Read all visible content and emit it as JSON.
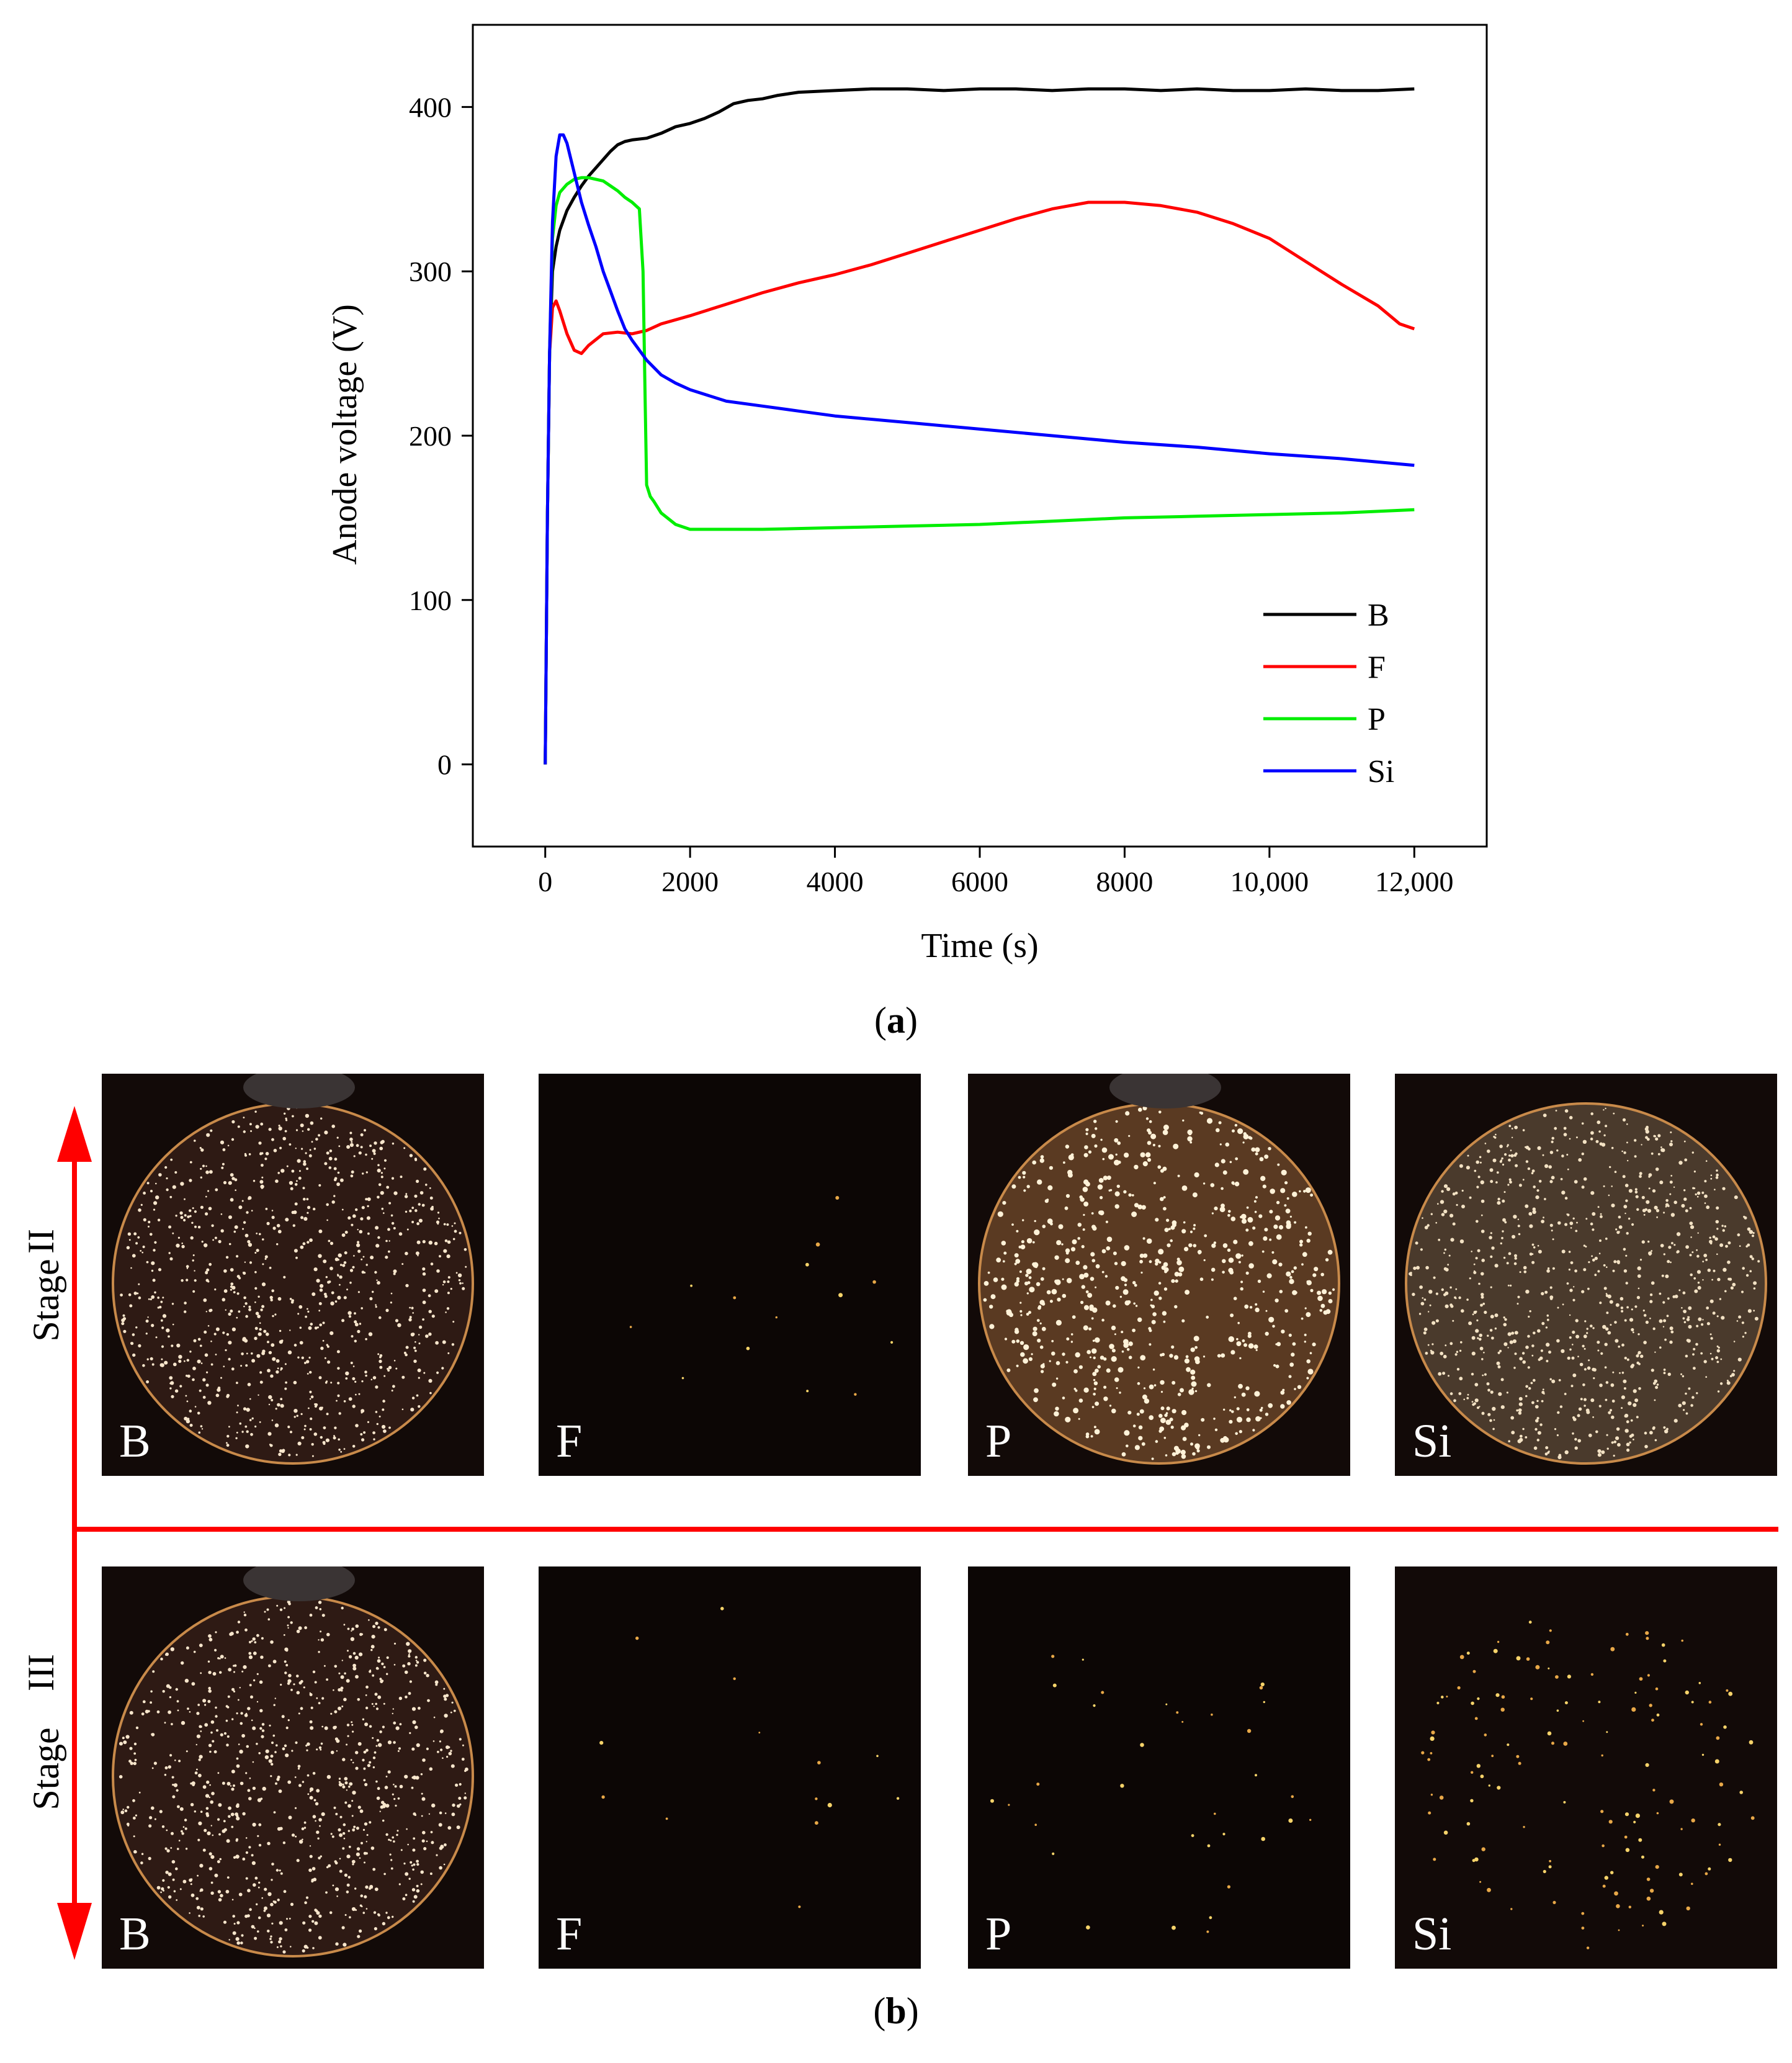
{
  "chart_data": {
    "type": "line",
    "title": "",
    "xlabel": "Time (s)",
    "ylabel": "Anode voltage (V)",
    "xlim": [
      -1000,
      13000
    ],
    "ylim": [
      -50,
      450
    ],
    "xticks": [
      0,
      2000,
      4000,
      6000,
      8000,
      10000,
      12000
    ],
    "xtick_labels": [
      "0",
      "2000",
      "4000",
      "6000",
      "8000",
      "10,000",
      "12,000"
    ],
    "yticks": [
      0,
      100,
      200,
      300,
      400
    ],
    "ytick_labels": [
      "0",
      "100",
      "200",
      "300",
      "400"
    ],
    "grid": false,
    "legend_position": "bottom-right",
    "series": [
      {
        "name": "B",
        "color": "#000000",
        "x": [
          0,
          30,
          60,
          100,
          150,
          200,
          300,
          400,
          500,
          600,
          700,
          800,
          900,
          1000,
          1100,
          1200,
          1400,
          1600,
          1800,
          2000,
          2200,
          2400,
          2600,
          2800,
          3000,
          3200,
          3500,
          4000,
          4500,
          5000,
          5500,
          6000,
          6500,
          7000,
          7500,
          8000,
          8500,
          9000,
          9500,
          10000,
          10500,
          11000,
          11500,
          12000
        ],
        "y": [
          0,
          150,
          250,
          300,
          315,
          325,
          337,
          345,
          352,
          358,
          363,
          368,
          373,
          377,
          379,
          380,
          381,
          384,
          388,
          390,
          393,
          397,
          402,
          404,
          405,
          407,
          409,
          410,
          411,
          411,
          410,
          411,
          411,
          410,
          411,
          411,
          410,
          411,
          410,
          410,
          411,
          410,
          410,
          411
        ]
      },
      {
        "name": "F",
        "color": "#ff0000",
        "x": [
          0,
          30,
          60,
          100,
          150,
          200,
          300,
          400,
          500,
          600,
          800,
          1000,
          1200,
          1400,
          1600,
          2000,
          2500,
          3000,
          3500,
          4000,
          4500,
          5000,
          5500,
          6000,
          6500,
          7000,
          7500,
          8000,
          8500,
          9000,
          9500,
          10000,
          10500,
          11000,
          11500,
          11800,
          12000
        ],
        "y": [
          0,
          150,
          250,
          278,
          282,
          276,
          262,
          252,
          250,
          255,
          262,
          263,
          262,
          264,
          268,
          273,
          280,
          287,
          293,
          298,
          304,
          311,
          318,
          325,
          332,
          338,
          342,
          342,
          340,
          336,
          329,
          320,
          306,
          292,
          279,
          268,
          265
        ]
      },
      {
        "name": "P",
        "color": "#00ee00",
        "x": [
          0,
          30,
          60,
          100,
          150,
          200,
          300,
          400,
          500,
          600,
          700,
          800,
          900,
          1000,
          1100,
          1200,
          1300,
          1350,
          1380,
          1400,
          1450,
          1500,
          1600,
          1800,
          2000,
          2500,
          3000,
          4000,
          5000,
          6000,
          7000,
          8000,
          9000,
          10000,
          11000,
          12000
        ],
        "y": [
          0,
          150,
          250,
          320,
          340,
          348,
          353,
          356,
          357,
          357,
          356,
          355,
          352,
          349,
          345,
          342,
          338,
          300,
          220,
          170,
          163,
          160,
          153,
          146,
          143,
          143,
          143,
          144,
          145,
          146,
          148,
          150,
          151,
          152,
          153,
          155
        ]
      },
      {
        "name": "Si",
        "color": "#0000ff",
        "x": [
          0,
          30,
          60,
          100,
          150,
          200,
          250,
          300,
          400,
          500,
          600,
          700,
          800,
          900,
          1000,
          1100,
          1200,
          1400,
          1600,
          1800,
          2000,
          2500,
          3000,
          3500,
          4000,
          5000,
          6000,
          7000,
          8000,
          9000,
          10000,
          11000,
          12000
        ],
        "y": [
          0,
          150,
          250,
          330,
          370,
          383,
          383,
          378,
          360,
          342,
          328,
          315,
          300,
          288,
          276,
          265,
          258,
          246,
          237,
          232,
          228,
          221,
          218,
          215,
          212,
          208,
          204,
          200,
          196,
          193,
          189,
          186,
          182
        ]
      }
    ]
  },
  "captions": {
    "a": "a",
    "b": "b"
  },
  "stages": {
    "label": "Stage",
    "upper": "II",
    "lower": "III"
  },
  "photos": {
    "stage_ii": [
      {
        "label": "B",
        "brightness": "bright"
      },
      {
        "label": "F",
        "brightness": "dark"
      },
      {
        "label": "P",
        "brightness": "bright"
      },
      {
        "label": "Si",
        "brightness": "bright"
      }
    ],
    "stage_iii": [
      {
        "label": "B",
        "brightness": "bright"
      },
      {
        "label": "F",
        "brightness": "dark"
      },
      {
        "label": "P",
        "brightness": "dark"
      },
      {
        "label": "Si",
        "brightness": "sparse"
      }
    ]
  },
  "colors": {
    "arrow": "#ff0000"
  }
}
